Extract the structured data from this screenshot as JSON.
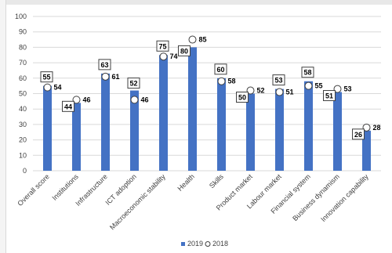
{
  "chart_data": {
    "type": "bar",
    "categories": [
      "Overall score",
      "Institutions",
      "Infrastructure",
      "ICT adoption",
      "Macroeconomic stability",
      "Health",
      "Skills",
      "Product market",
      "Labour market",
      "Financial system",
      "Business dynamism",
      "Innovation capability"
    ],
    "series": [
      {
        "name": "2019",
        "kind": "bar",
        "color": "#4472c4",
        "values": [
          55,
          44,
          63,
          52,
          75,
          80,
          60,
          50,
          53,
          58,
          51,
          26
        ]
      },
      {
        "name": "2018",
        "kind": "marker",
        "color": "#ffffff",
        "values": [
          54,
          46,
          61,
          46,
          74,
          85,
          58,
          52,
          51,
          55,
          53,
          28
        ]
      }
    ],
    "ylim": [
      0,
      100
    ],
    "yticks": [
      0,
      10,
      20,
      30,
      40,
      50,
      60,
      70,
      80,
      90,
      100
    ],
    "grid": true,
    "legend": "bottom-center",
    "bar_value_labels": [
      "55",
      "44",
      "63",
      "52",
      "75",
      "80",
      "60",
      "50",
      "53",
      "58",
      "51",
      "26"
    ],
    "marker_value_labels": [
      "54",
      "46",
      "61",
      "46",
      "74",
      "85",
      "58",
      "52",
      "51",
      "55",
      "53",
      "28"
    ],
    "legend_labels": [
      "2019",
      "2018"
    ]
  }
}
